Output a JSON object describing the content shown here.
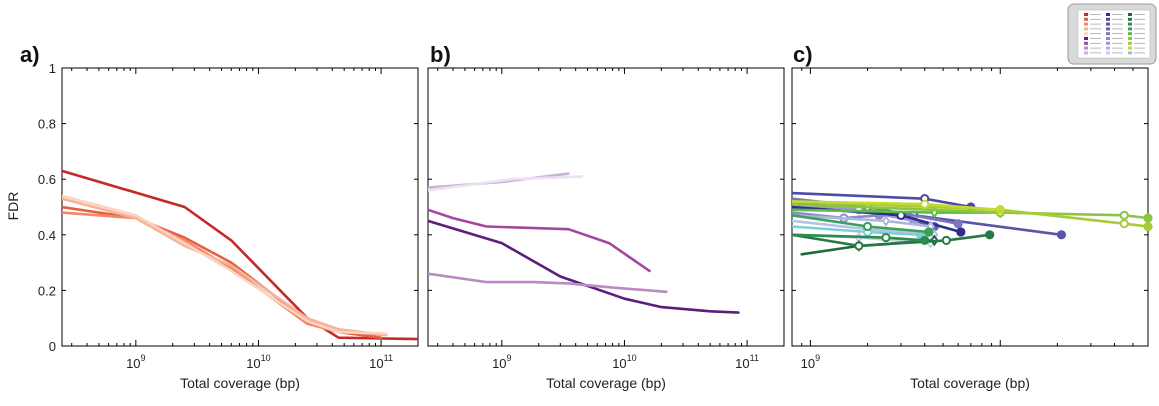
{
  "figure": {
    "ylabel": "FDR"
  },
  "chart_data": [
    {
      "type": "line",
      "panel_label": "a)",
      "xlabel": "Total coverage (bp)",
      "ylabel": "FDR",
      "xscale": "log",
      "xlim": [
        250000000,
        200000000000
      ],
      "ylim": [
        0,
        1
      ],
      "x_tick_labels": [
        "10^9",
        "10^10",
        "10^11"
      ],
      "y_tick_labels": [
        "0",
        "0.2",
        "0.4",
        "0.6",
        "0.8",
        "1"
      ],
      "grid": false,
      "series": [
        {
          "color": "#c62a26",
          "x": [
            250000000,
            2500000000,
            6000000000,
            25000000000,
            45000000000,
            200000000000
          ],
          "y": [
            0.63,
            0.5,
            0.38,
            0.1,
            0.03,
            0.025
          ]
        },
        {
          "color": "#e4613f",
          "x": [
            250000000,
            1000000000,
            2500000000,
            6000000000,
            25000000000,
            45000000000,
            100000000000
          ],
          "y": [
            0.5,
            0.46,
            0.39,
            0.3,
            0.09,
            0.05,
            0.03
          ]
        },
        {
          "color": "#f0896a",
          "x": [
            250000000,
            1000000000,
            2500000000,
            6000000000,
            25000000000,
            45000000000,
            110000000000
          ],
          "y": [
            0.48,
            0.46,
            0.38,
            0.28,
            0.08,
            0.05,
            0.04
          ]
        },
        {
          "color": "#f6b39a",
          "x": [
            250000000,
            1000000000,
            2500000000,
            6000000000,
            25000000000,
            45000000000,
            110000000000
          ],
          "y": [
            0.53,
            0.46,
            0.36,
            0.29,
            0.1,
            0.06,
            0.04
          ]
        },
        {
          "color": "#fbd4c4",
          "x": [
            250000000,
            1000000000,
            2500000000,
            6000000000,
            25000000000,
            45000000000,
            110000000000
          ],
          "y": [
            0.54,
            0.47,
            0.37,
            0.27,
            0.09,
            0.05,
            0.045
          ]
        }
      ]
    },
    {
      "type": "line",
      "panel_label": "b)",
      "xlabel": "Total coverage (bp)",
      "xscale": "log",
      "xlim": [
        250000000,
        200000000000
      ],
      "ylim": [
        0,
        1
      ],
      "x_tick_labels": [
        "10^9",
        "10^10",
        "10^11"
      ],
      "grid": false,
      "series": [
        {
          "color": "#5b1e7a",
          "x": [
            250000000,
            1000000000,
            3000000000,
            10000000000,
            20000000000,
            50000000000,
            85000000000
          ],
          "y": [
            0.45,
            0.37,
            0.25,
            0.17,
            0.14,
            0.125,
            0.12
          ]
        },
        {
          "color": "#a4489f",
          "x": [
            250000000,
            400000000,
            750000000,
            3500000000,
            7500000000,
            16000000000
          ],
          "y": [
            0.49,
            0.46,
            0.43,
            0.42,
            0.37,
            0.27
          ]
        },
        {
          "color": "#b98ac4",
          "x": [
            250000000,
            750000000,
            1800000000,
            3500000000,
            8000000000,
            22000000000
          ],
          "y": [
            0.26,
            0.23,
            0.23,
            0.225,
            0.21,
            0.195
          ]
        },
        {
          "color": "#cdb0d9",
          "x": [
            250000000,
            1000000000,
            3500000000
          ],
          "y": [
            0.57,
            0.59,
            0.62
          ]
        },
        {
          "color": "#ece1f0",
          "x": [
            250000000,
            1200000000,
            4500000000
          ],
          "y": [
            0.56,
            0.6,
            0.61
          ]
        }
      ]
    },
    {
      "type": "line",
      "panel_label": "c)",
      "xlabel": "Total coverage (bp)",
      "xscale": "log",
      "xlim": [
        80000000,
        6000000000
      ],
      "ylim": [
        0,
        1
      ],
      "x_tick_labels": [
        "10^9"
      ],
      "grid": false,
      "series": [
        {
          "color": "#4d4ca3",
          "marker": "o",
          "x": [
            80000000,
            400000000,
            700000000
          ],
          "y": [
            0.55,
            0.53,
            0.5
          ]
        },
        {
          "color": "#5855a8",
          "marker": "o",
          "x": [
            80000000,
            350000000,
            2100000000
          ],
          "y": [
            0.5,
            0.47,
            0.4
          ]
        },
        {
          "color": "#6764b4",
          "marker": "o",
          "x": [
            80000000,
            250000000,
            450000000
          ],
          "y": [
            0.52,
            0.48,
            0.43
          ]
        },
        {
          "color": "#7a76c0",
          "marker": "o",
          "x": [
            80000000,
            200000000,
            600000000
          ],
          "y": [
            0.53,
            0.5,
            0.44
          ]
        },
        {
          "color": "#8d8ac9",
          "marker": "o",
          "x": [
            80000000,
            150000000,
            230000000
          ],
          "y": [
            0.48,
            0.46,
            0.47
          ]
        },
        {
          "color": "#9b99d2",
          "marker": "o",
          "x": [
            80000000,
            180000000,
            350000000
          ],
          "y": [
            0.51,
            0.49,
            0.45
          ]
        },
        {
          "color": "#2f2f8a",
          "marker": "o",
          "x": [
            80000000,
            300000000,
            620000000
          ],
          "y": [
            0.5,
            0.47,
            0.41
          ]
        },
        {
          "color": "#aab7de",
          "marker": "d",
          "x": [
            80000000,
            250000000,
            430000000
          ],
          "y": [
            0.47,
            0.45,
            0.43
          ]
        },
        {
          "color": "#b7c3e6",
          "marker": "d",
          "x": [
            80000000,
            200000000,
            450000000
          ],
          "y": [
            0.45,
            0.42,
            0.4
          ]
        },
        {
          "color": "#c2d0ec",
          "marker": "d",
          "x": [
            80000000,
            180000000,
            430000000
          ],
          "y": [
            0.4,
            0.39,
            0.37
          ]
        },
        {
          "color": "#7fcfd0",
          "marker": "o",
          "x": [
            80000000,
            200000000,
            380000000
          ],
          "y": [
            0.43,
            0.41,
            0.4
          ]
        },
        {
          "color": "#1d6b3a",
          "marker": "d",
          "x": [
            90000000,
            180000000,
            450000000
          ],
          "y": [
            0.33,
            0.36,
            0.38
          ]
        },
        {
          "color": "#257a44",
          "marker": "o",
          "x": [
            80000000,
            180000000,
            520000000,
            880000000
          ],
          "y": [
            0.4,
            0.36,
            0.38,
            0.4
          ]
        },
        {
          "color": "#2e8a4e",
          "marker": "o",
          "x": [
            80000000,
            250000000,
            400000000
          ],
          "y": [
            0.4,
            0.39,
            0.38
          ]
        },
        {
          "color": "#3aa05a",
          "marker": "o",
          "x": [
            80000000,
            200000000,
            420000000
          ],
          "y": [
            0.47,
            0.43,
            0.41
          ]
        },
        {
          "color": "#5abb47",
          "marker": "d",
          "x": [
            80000000,
            450000000,
            1000000000
          ],
          "y": [
            0.49,
            0.48,
            0.48
          ]
        },
        {
          "color": "#8cc63f",
          "marker": "o",
          "x": [
            80000000,
            1000000000,
            4500000000,
            6000000000
          ],
          "y": [
            0.51,
            0.48,
            0.47,
            0.46
          ]
        },
        {
          "color": "#a7cc35",
          "marker": "o",
          "x": [
            80000000,
            1000000000,
            4500000000,
            6000000000
          ],
          "y": [
            0.52,
            0.49,
            0.44,
            0.43
          ]
        },
        {
          "color": "#c3d92f",
          "marker": "o",
          "x": [
            80000000,
            400000000,
            1000000000
          ],
          "y": [
            0.52,
            0.51,
            0.49
          ]
        }
      ]
    }
  ]
}
